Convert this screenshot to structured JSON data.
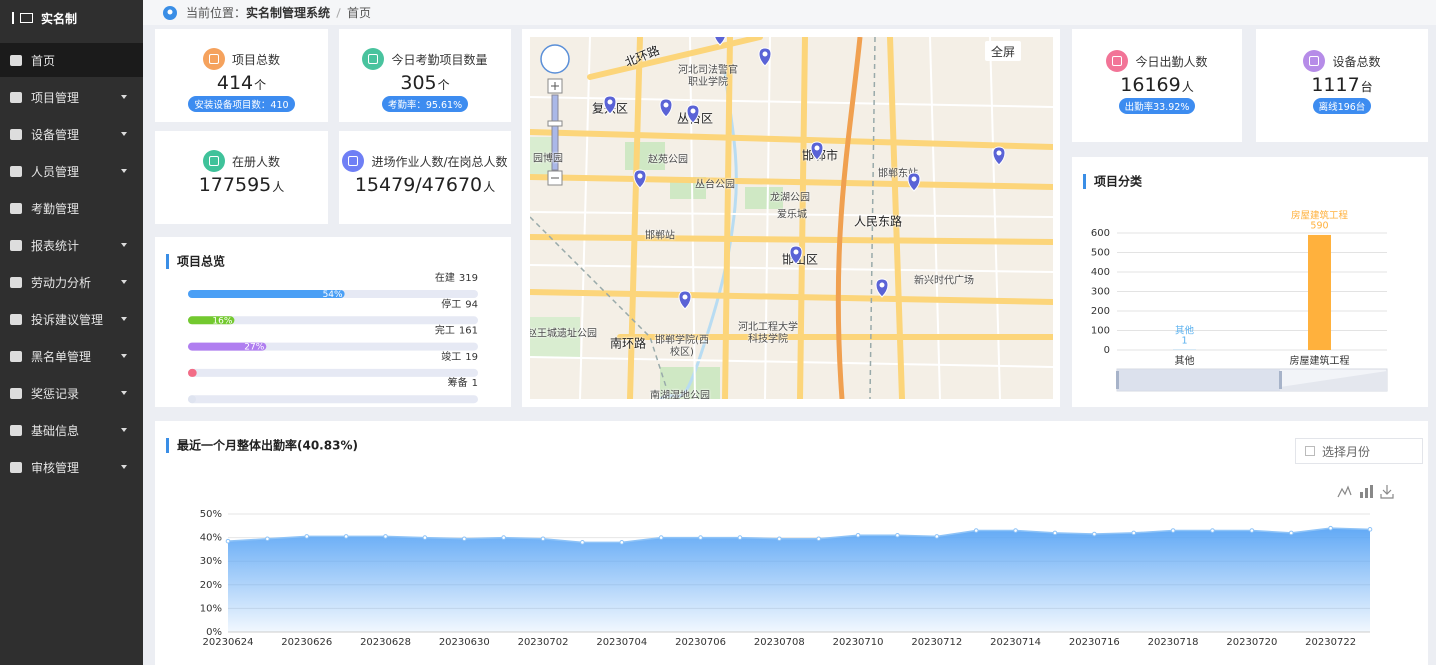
{
  "sidebar": {
    "logo": "实名制",
    "menu": [
      "首页",
      "项目管理",
      "设备管理",
      "人员管理",
      "考勤管理",
      "报表统计",
      "劳动力分析",
      "投诉建议管理",
      "黑名单管理",
      "奖惩记录",
      "基础信息",
      "审核管理"
    ]
  },
  "breadcrumb": {
    "label": "当前位置：",
    "system": "实名制管理系统",
    "page": "首页"
  },
  "stats": [
    {
      "label": "项目总数",
      "value": 414,
      "unit": "个",
      "badge": "安装设备项目数：410"
    },
    {
      "label": "今日考勤项目数量",
      "value": 305,
      "unit": "个",
      "badge": "考勤率：95.61%"
    },
    {
      "label": "在册人数",
      "value": 177595,
      "unit": "人"
    },
    {
      "label": "进场作业人数/在岗总人数",
      "value": "15479/47670",
      "unit": "人"
    },
    {
      "label": "今日出勤人数",
      "value": 16169,
      "unit": "人",
      "badge": "出勤率33.92%"
    },
    {
      "label": "设备总数",
      "value": 1117,
      "unit": "台",
      "badge": "离线196台"
    }
  ],
  "map": {
    "fullscreen": "全屏",
    "labels": [
      "北环路",
      "复兴区",
      "丛台区",
      "邯郸市",
      "人民东路",
      "邯山区",
      "南环路",
      "赵苑公园",
      "丛台公园",
      "龙湖公园",
      "爱乐城",
      "邯郸站",
      "邯郸东站",
      "新兴时代广场",
      "河北司法警官职业学院",
      "河北工程大学科技学院",
      "邯郸学院(西校区)",
      "赵王城遗址公园",
      "南湖湿地公园",
      "园博园"
    ]
  },
  "date_picker": "选择月份",
  "chart_data": [
    {
      "type": "progress",
      "title": "项目总览",
      "categories": [
        "在建",
        "停工",
        "完工",
        "竣工",
        "筹备"
      ],
      "counts": [
        319,
        94,
        161,
        19,
        1
      ],
      "values": [
        54,
        16,
        27,
        3,
        0.2
      ],
      "value_labels": [
        "54%",
        "16%",
        "27%",
        null,
        null
      ],
      "colors": [
        "#4a9ff5",
        "#73c92f",
        "#b07ef0",
        "#f26c86",
        "#dfe4f0"
      ],
      "xlim": [
        0,
        100
      ]
    },
    {
      "type": "bar",
      "title": "项目分类",
      "categories": [
        "其他",
        "房屋建筑工程"
      ],
      "values": [
        1,
        590
      ],
      "colors": [
        "#5ab1ef",
        "#ffb13d"
      ],
      "ylim": [
        0,
        600
      ],
      "yticks": [
        0,
        100,
        200,
        300,
        400,
        500,
        600
      ],
      "grid": true
    },
    {
      "type": "area",
      "title": "最近一个月整体出勤率(40.83%)",
      "categories": [
        "20230624",
        null,
        "20230626",
        null,
        "20230628",
        null,
        "20230630",
        null,
        "20230702",
        null,
        "20230704",
        null,
        "20230706",
        null,
        "20230708",
        null,
        "20230710",
        null,
        "20230712",
        null,
        "20230714",
        null,
        "20230716",
        null,
        "20230718",
        null,
        "20230720",
        null,
        "20230722",
        null
      ],
      "values": [
        38.5,
        39.5,
        40.5,
        40.5,
        40.5,
        40,
        39.5,
        40,
        39.5,
        38,
        38,
        40,
        40,
        40,
        39.5,
        39.5,
        41,
        41,
        40.5,
        43,
        43,
        42,
        41.5,
        42,
        43,
        43,
        43,
        42,
        44,
        43.5
      ],
      "color": "#5aa5f5",
      "ylim": [
        0,
        50
      ],
      "yticks": [
        {
          "value": 0,
          "label": "0%"
        },
        {
          "value": 10,
          "label": "10%"
        },
        {
          "value": 20,
          "label": "20%"
        },
        {
          "value": 30,
          "label": "30%"
        },
        {
          "value": 40,
          "label": "40%"
        },
        {
          "value": 50,
          "label": "50%"
        }
      ],
      "grid": true
    }
  ]
}
